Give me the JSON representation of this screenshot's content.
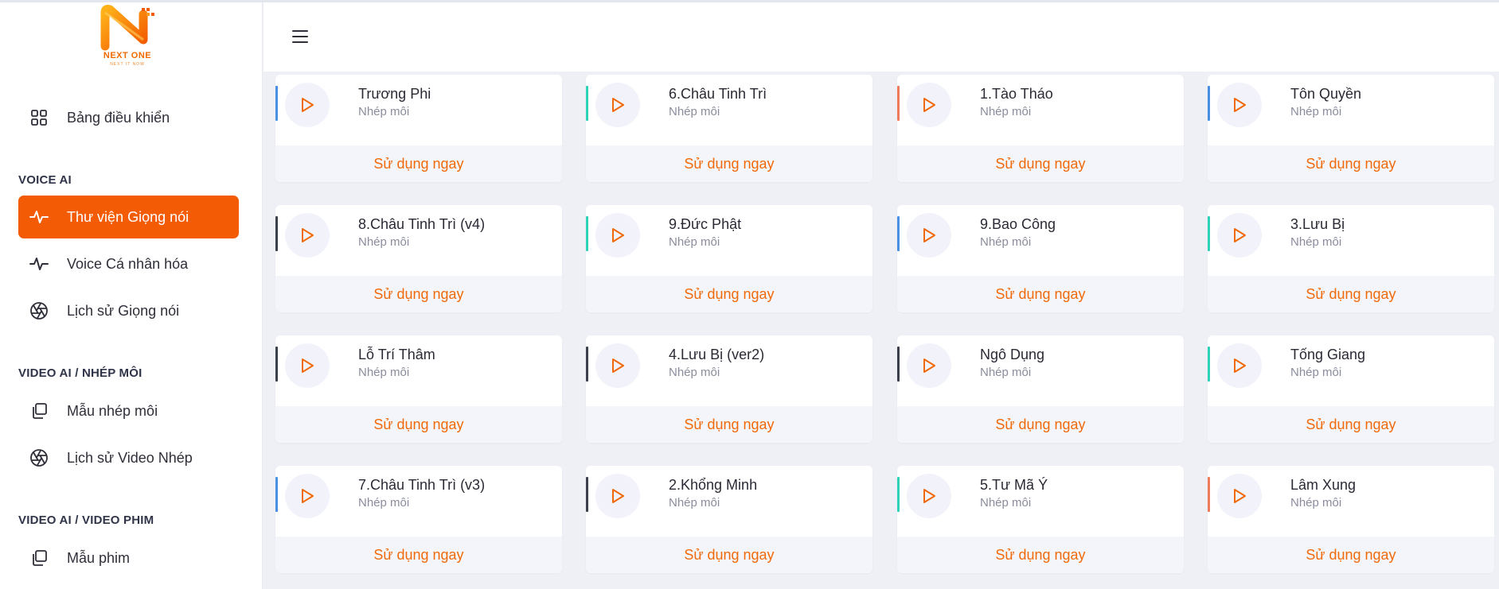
{
  "brand": {
    "logo_text": "NEXT ONE",
    "logo_sub": "NEXT IT NOW",
    "accent": "#f35b04"
  },
  "sidebar": {
    "dashboard": {
      "label": "Bảng điều khiển",
      "icon": "grid-icon"
    },
    "sections": [
      {
        "title": "VOICE AI",
        "items": [
          {
            "label": "Thư viện Giọng nói",
            "icon": "waveform-icon",
            "active": true
          },
          {
            "label": "Voice Cá nhân hóa",
            "icon": "waveform-icon",
            "active": false
          },
          {
            "label": "Lịch sử Giọng nói",
            "icon": "aperture-icon",
            "active": false
          }
        ]
      },
      {
        "title": "VIDEO AI / NHÉP MÔI",
        "items": [
          {
            "label": "Mẫu nhép môi",
            "icon": "copy-icon",
            "active": false
          },
          {
            "label": "Lịch sử Video Nhép",
            "icon": "aperture-icon",
            "active": false
          }
        ]
      },
      {
        "title": "VIDEO AI / VIDEO PHIM",
        "items": [
          {
            "label": "Mẫu phim",
            "icon": "copy-icon",
            "active": false
          }
        ]
      }
    ]
  },
  "header": {
    "menu_icon": "hamburger-icon"
  },
  "cards": [
    {
      "name": "Trương Phi",
      "sub": "Nhép môi",
      "action": "Sử dụng ngay",
      "accent": "#4a90e2"
    },
    {
      "name": "6.Châu Tinh Trì",
      "sub": "Nhép môi",
      "action": "Sử dụng ngay",
      "accent": "#2ed3b7"
    },
    {
      "name": "1.Tào Tháo",
      "sub": "Nhép môi",
      "action": "Sử dụng ngay",
      "accent": "#f07b5a"
    },
    {
      "name": "Tôn Quyền",
      "sub": "Nhép môi",
      "action": "Sử dụng ngay",
      "accent": "#4a90e2"
    },
    {
      "name": "8.Châu Tinh Trì (v4)",
      "sub": "Nhép môi",
      "action": "Sử dụng ngay",
      "accent": "#3a3f4b"
    },
    {
      "name": "9.Đức Phật",
      "sub": "Nhép môi",
      "action": "Sử dụng ngay",
      "accent": "#2ed3b7"
    },
    {
      "name": "9.Bao Công",
      "sub": "Nhép môi",
      "action": "Sử dụng ngay",
      "accent": "#4a90e2"
    },
    {
      "name": "3.Lưu Bị",
      "sub": "Nhép môi",
      "action": "Sử dụng ngay",
      "accent": "#2ed3b7"
    },
    {
      "name": "Lỗ Trí Thâm",
      "sub": "Nhép môi",
      "action": "Sử dụng ngay",
      "accent": "#3a3f4b"
    },
    {
      "name": "4.Lưu Bị (ver2)",
      "sub": "Nhép môi",
      "action": "Sử dụng ngay",
      "accent": "#3a3f4b"
    },
    {
      "name": "Ngô Dụng",
      "sub": "Nhép môi",
      "action": "Sử dụng ngay",
      "accent": "#3a3f4b"
    },
    {
      "name": "Tống Giang",
      "sub": "Nhép môi",
      "action": "Sử dụng ngay",
      "accent": "#2ed3b7"
    },
    {
      "name": "7.Châu Tinh Trì (v3)",
      "sub": "Nhép môi",
      "action": "Sử dụng ngay",
      "accent": "#4a90e2"
    },
    {
      "name": "2.Khổng Minh",
      "sub": "Nhép môi",
      "action": "Sử dụng ngay",
      "accent": "#3a3f4b"
    },
    {
      "name": "5.Tư Mã Ý",
      "sub": "Nhép môi",
      "action": "Sử dụng ngay",
      "accent": "#2ed3b7"
    },
    {
      "name": "Lâm Xung",
      "sub": "Nhép môi",
      "action": "Sử dụng ngay",
      "accent": "#f07b5a"
    }
  ]
}
